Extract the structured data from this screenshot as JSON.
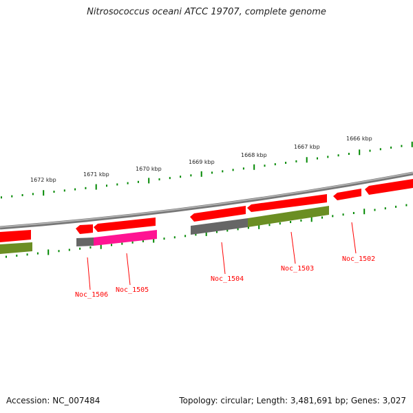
{
  "title": "Nitrosococcus oceani ATCC 19707, complete genome",
  "footer": {
    "accession": "Accession: NC_007484",
    "topology": "Topology: circular; Length: 3,481,691 bp; Genes: 3,027"
  },
  "ticks": [
    "1672 kbp",
    "1671 kbp",
    "1670 kbp",
    "1669 kbp",
    "1668 kbp",
    "1667 kbp",
    "1666 kbp"
  ],
  "genes": [
    "Noc_1506",
    "Noc_1505",
    "Noc_1504",
    "Noc_1503",
    "Noc_1502"
  ],
  "colors": {
    "cds": "#ff0000",
    "olive": "#6b8e23",
    "gray": "#666666",
    "pink": "#ff1493",
    "tick": "#008000",
    "backbone": "#888888"
  }
}
